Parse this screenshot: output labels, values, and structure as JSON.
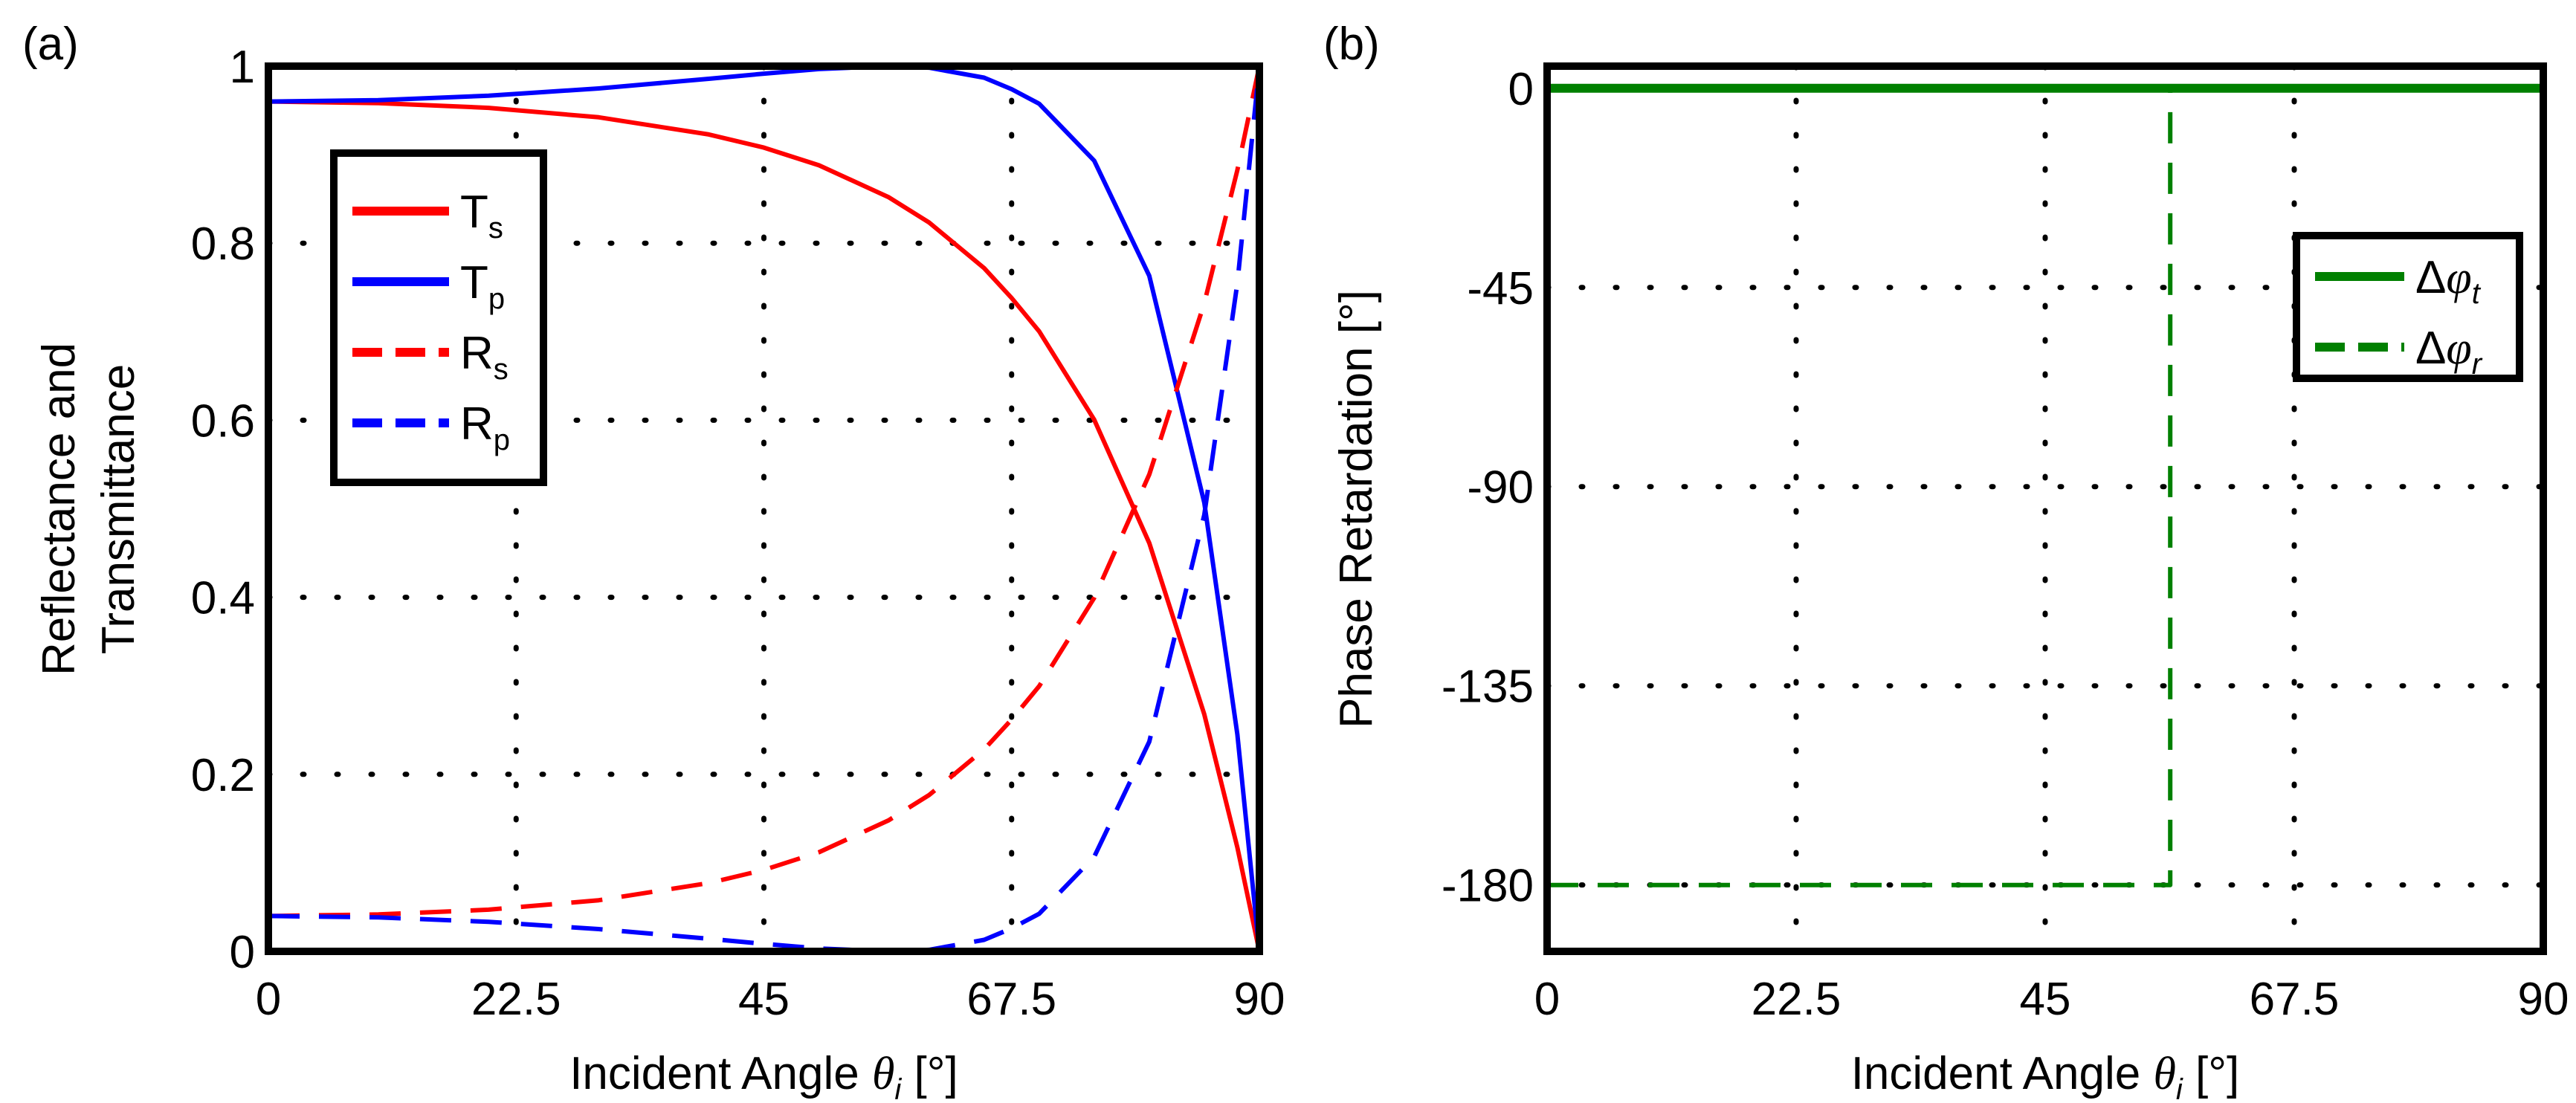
{
  "chart_data": [
    {
      "type": "line",
      "panel_label": "(a)",
      "xlabel": "Incident Angle θi [°]",
      "ylabel": [
        "Reflectance and",
        "Transmittance"
      ],
      "xlim": [
        0,
        90
      ],
      "ylim": [
        0,
        1
      ],
      "xticks": [
        "0",
        "22.5",
        "45",
        "67.5",
        "90"
      ],
      "xtick_values": [
        0,
        22.5,
        45,
        67.5,
        90
      ],
      "yticks": [
        "0",
        "0.2",
        "0.4",
        "0.6",
        "0.8",
        "1"
      ],
      "ytick_values": [
        0,
        0.2,
        0.4,
        0.6,
        0.8,
        1
      ],
      "grid": true,
      "legend_placement": "upper-left",
      "x": [
        0,
        10,
        20,
        30,
        40,
        45,
        50,
        56.3,
        60,
        65,
        67.5,
        70,
        75,
        80,
        85,
        88,
        90
      ],
      "series": [
        {
          "name": "Ts",
          "color": "#ff0000",
          "style": "solid",
          "values": [
            0.96,
            0.9583,
            0.9529,
            0.9422,
            0.9228,
            0.908,
            0.888,
            0.8521,
            0.8234,
            0.7719,
            0.738,
            0.7004,
            0.6007,
            0.4613,
            0.2678,
            0.1174,
            0
          ]
        },
        {
          "name": "Tp",
          "color": "#0000ff",
          "style": "solid",
          "values": [
            0.96,
            0.9616,
            0.9666,
            0.9748,
            0.9857,
            0.9915,
            0.9967,
            1.0,
            0.9982,
            0.987,
            0.974,
            0.9575,
            0.8932,
            0.7631,
            0.5069,
            0.245,
            0
          ]
        },
        {
          "name": "Rs",
          "color": "#ff0000",
          "style": "dashed",
          "values": [
            0.04,
            0.0417,
            0.0471,
            0.0578,
            0.0772,
            0.092,
            0.112,
            0.1479,
            0.1766,
            0.2281,
            0.262,
            0.2996,
            0.3993,
            0.5387,
            0.7322,
            0.8826,
            1
          ]
        },
        {
          "name": "Rp",
          "color": "#0000ff",
          "style": "dashed",
          "values": [
            0.04,
            0.0384,
            0.0334,
            0.0252,
            0.0143,
            0.0085,
            0.0033,
            0.0,
            0.0018,
            0.013,
            0.026,
            0.0425,
            0.1068,
            0.2369,
            0.4931,
            0.755,
            1
          ]
        }
      ]
    },
    {
      "type": "line",
      "panel_label": "(b)",
      "xlabel": "Incident Angle θi [°]",
      "ylabel": "Phase Retardation [°]",
      "xlim": [
        0,
        90
      ],
      "ylim": [
        -195,
        5
      ],
      "xticks": [
        "0",
        "22.5",
        "45",
        "67.5",
        "90"
      ],
      "xtick_values": [
        0,
        22.5,
        45,
        67.5,
        90
      ],
      "yticks": [
        "0",
        "-45",
        "-90",
        "-135",
        "-180"
      ],
      "ytick_values": [
        0,
        -45,
        -90,
        -135,
        -180
      ],
      "grid": true,
      "legend_placement": "upper-right",
      "series": [
        {
          "name": "Δφt",
          "color": "#008000",
          "style": "solid",
          "x": [
            0,
            90
          ],
          "values": [
            0,
            0
          ]
        },
        {
          "name": "Δφr",
          "color": "#008000",
          "style": "dashed",
          "x": [
            0,
            56.3,
            56.3,
            90
          ],
          "values": [
            -180,
            -180,
            0,
            0
          ]
        }
      ]
    }
  ]
}
